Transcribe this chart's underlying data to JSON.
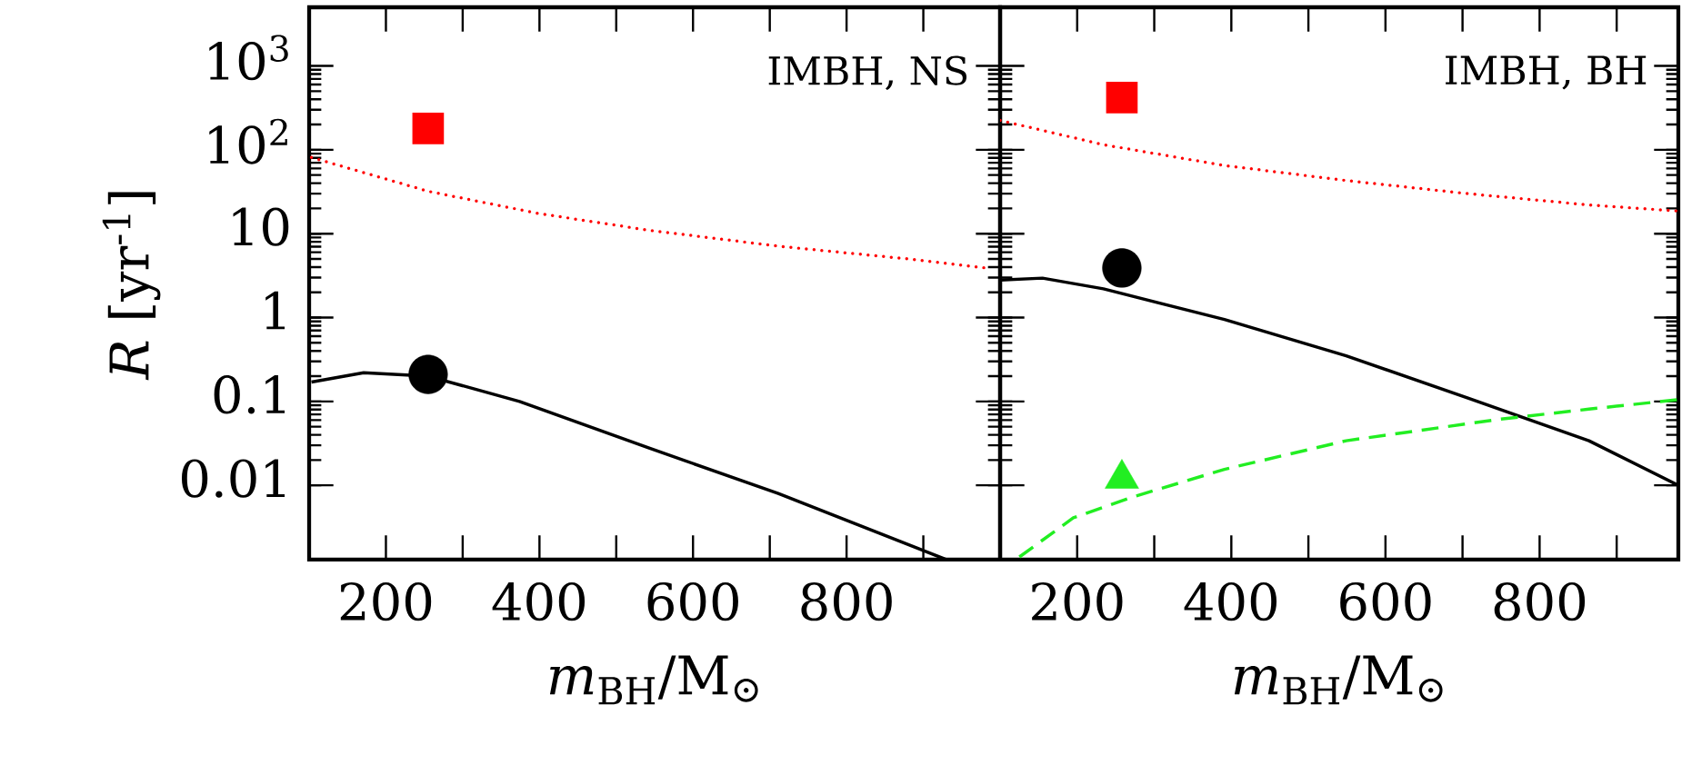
{
  "chart_data": [
    {
      "type": "line",
      "xlabel": "*m*$_{BH}$/M$_{⊙}$",
      "ylabel": "*R* [yr$^{-1}$]",
      "annotations": [
        "IMBH, NS"
      ],
      "log": "y",
      "grid": false,
      "xlim": [
        100,
        1000
      ],
      "ylim": [
        0.0013,
        5000
      ],
      "xticks": [
        {
          "value": 100,
          "label": null
        },
        200,
        {
          "value": 300,
          "label": null
        },
        400,
        {
          "value": 500,
          "label": null
        },
        600,
        {
          "value": 700,
          "label": null
        },
        800,
        {
          "value": 900,
          "label": null
        }
      ],
      "yticks": [
        0.01,
        0.1,
        1,
        10,
        {
          "value": 100,
          "label": "10$^{2}$"
        },
        {
          "value": 1000,
          "label": "10$^{3}$"
        }
      ],
      "series": [
        {
          "type": "line",
          "line_style": "dotted",
          "marker": "none",
          "color": "#ff0000",
          "x": [
            103,
            255,
            399,
            542,
            711,
            880,
            982
          ],
          "values": [
            81,
            32,
            17.4,
            11,
            7.1,
            5.0,
            3.9
          ]
        },
        {
          "type": "line",
          "line_style": "solid",
          "marker": "none",
          "color": "#000000",
          "x": [
            103,
            171,
            255,
            374,
            542,
            711,
            930
          ],
          "values": [
            0.17,
            0.22,
            0.2,
            0.1,
            0.028,
            0.008,
            0.0013
          ]
        },
        {
          "type": "scatter",
          "marker": "square",
          "color": "#ff0000",
          "x": [
            255
          ],
          "values": [
            180
          ]
        },
        {
          "type": "scatter",
          "marker": "circle",
          "color": "#000000",
          "x": [
            255
          ],
          "values": [
            0.21
          ]
        }
      ]
    },
    {
      "type": "line",
      "xlabel": "*m*$_{BH}$/M$_{⊙}$",
      "annotations": [
        "IMBH, BH"
      ],
      "log": "y",
      "grid": false,
      "tick_labels": "x",
      "xlim": [
        100,
        980
      ],
      "ylim": [
        0.0013,
        5000
      ],
      "xticks": [
        {
          "value": 100,
          "label": null
        },
        200,
        {
          "value": 300,
          "label": null
        },
        400,
        {
          "value": 500,
          "label": null
        },
        600,
        {
          "value": 700,
          "label": null
        },
        800,
        {
          "value": 900,
          "label": null
        }
      ],
      "yticks": [
        0.01,
        0.1,
        1,
        10,
        100,
        1000
      ],
      "series": [
        {
          "type": "line",
          "line_style": "dotted",
          "marker": "none",
          "color": "#ff0000",
          "x": [
            100,
            234,
            391,
            549,
            707,
            864,
            980
          ],
          "values": [
            224,
            115,
            65,
            43,
            30,
            22,
            18.6
          ]
        },
        {
          "type": "line",
          "line_style": "solid",
          "marker": "none",
          "color": "#000000",
          "x": [
            100,
            155,
            234,
            391,
            549,
            707,
            864,
            980
          ],
          "values": [
            2.8,
            2.95,
            2.2,
            0.95,
            0.35,
            0.11,
            0.034,
            0.01
          ]
        },
        {
          "type": "line",
          "line_style": "dashed",
          "marker": "none",
          "color": "#22ee22",
          "x": [
            125,
            195,
            273,
            391,
            549,
            746,
            864,
            980
          ],
          "values": [
            0.0014,
            0.0041,
            0.0073,
            0.0155,
            0.034,
            0.061,
            0.081,
            0.105
          ]
        },
        {
          "type": "scatter",
          "marker": "square",
          "color": "#ff0000",
          "x": [
            258
          ],
          "values": [
            420
          ]
        },
        {
          "type": "scatter",
          "marker": "circle",
          "color": "#000000",
          "x": [
            258
          ],
          "values": [
            3.9
          ]
        },
        {
          "type": "scatter",
          "marker": "triangle",
          "color": "#22ee22",
          "x": [
            258
          ],
          "values": [
            0.012
          ]
        }
      ]
    }
  ]
}
